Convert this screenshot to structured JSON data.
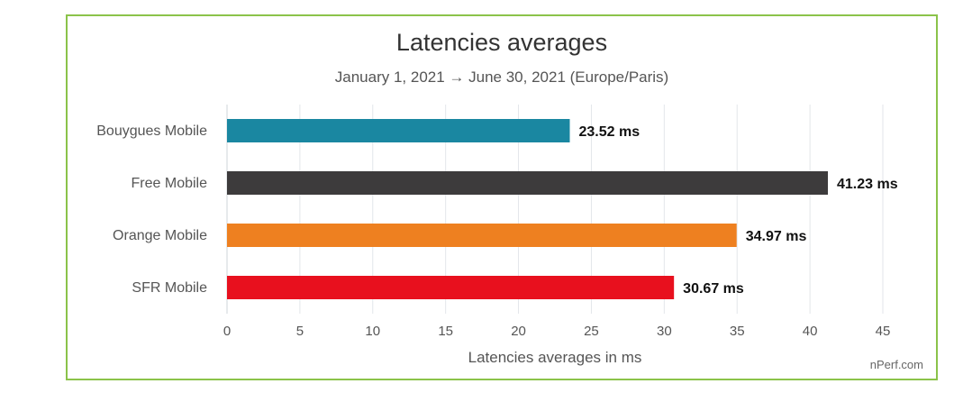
{
  "chart_data": {
    "type": "bar",
    "orientation": "horizontal",
    "title": "Latencies averages",
    "subtitle": "January 1, 2021 → June 30, 2021 (Europe/Paris)",
    "xlabel": "Latencies averages in ms",
    "ylabel": "",
    "categories": [
      "Bouygues Mobile",
      "Free Mobile",
      "Orange Mobile",
      "SFR Mobile"
    ],
    "values": [
      23.52,
      41.23,
      34.97,
      30.67
    ],
    "value_labels": [
      "23.52 ms",
      "41.23 ms",
      "34.97 ms",
      "30.67 ms"
    ],
    "colors": [
      "#1a87a1",
      "#3d3b3c",
      "#ee8020",
      "#e8101e"
    ],
    "xlim": [
      0,
      45
    ],
    "xticks": [
      0,
      5,
      10,
      15,
      20,
      25,
      30,
      35,
      40,
      45
    ],
    "grid": true,
    "legend": "none"
  },
  "credit": "nPerf.com"
}
